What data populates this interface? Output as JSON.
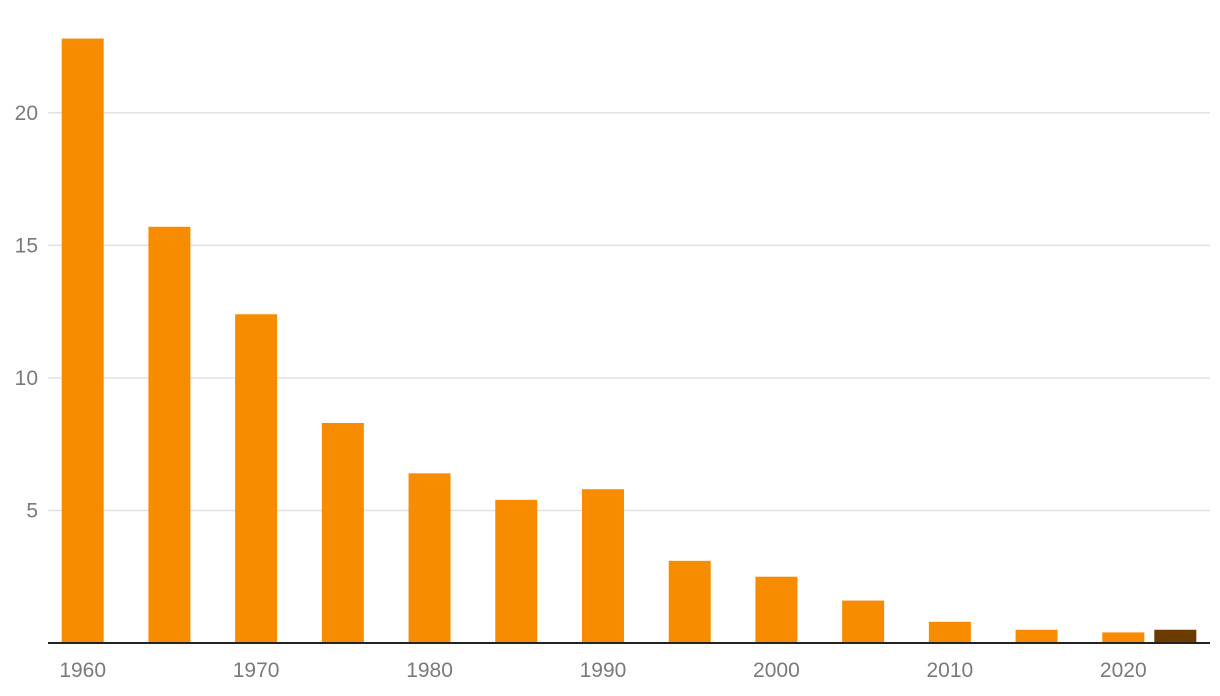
{
  "chart_data": {
    "type": "bar",
    "title": "",
    "xlabel": "",
    "ylabel": "",
    "x": [
      1960,
      1965,
      1970,
      1975,
      1980,
      1985,
      1990,
      1995,
      2000,
      2005,
      2010,
      2015,
      2020,
      2023
    ],
    "values": [
      22.8,
      15.7,
      12.4,
      8.3,
      6.4,
      5.4,
      5.8,
      3.1,
      2.5,
      1.6,
      0.8,
      0.5,
      0.4,
      0.5
    ],
    "highlight_index": 13,
    "ylim": [
      0,
      23.5
    ],
    "xlim": [
      1958,
      2025
    ],
    "y_ticks": [
      5,
      10,
      15,
      20
    ],
    "x_ticks": [
      1960,
      1970,
      1980,
      1990,
      2000,
      2010,
      2020
    ],
    "grid": true,
    "legend": "none",
    "colors": {
      "bar": "#f78c00",
      "highlight": "#6b3b00"
    }
  }
}
